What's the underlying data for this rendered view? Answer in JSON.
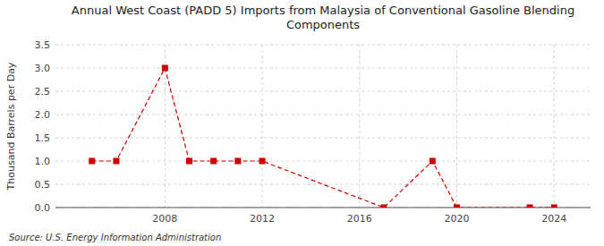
{
  "chart_data": {
    "type": "line",
    "title": "Annual West Coast (PADD 5) Imports from Malaysia of Conventional Gasoline Blending\nComponents",
    "ylabel": "Thousand Barrels per Day",
    "source": "Source: U.S. Energy Information Administration",
    "x": [
      2005,
      2006,
      2008,
      2009,
      2010,
      2011,
      2012,
      2017,
      2019,
      2020,
      2023,
      2024
    ],
    "series": [
      {
        "values": [
          1.0,
          1.0,
          3.0,
          1.0,
          1.0,
          1.0,
          1.0,
          0.0,
          1.0,
          0.0,
          0.0,
          0.0
        ],
        "color": "#cc0000",
        "marker": "square",
        "line_style": "dashed"
      }
    ],
    "xlim": [
      2003.5,
      2025.5
    ],
    "xticks": [
      2008,
      2012,
      2016,
      2020,
      2024
    ],
    "ylim": [
      0.0,
      3.5
    ],
    "yticks": [
      {
        "value": 0.0,
        "label": "0.0"
      },
      0.5,
      {
        "value": 1.0,
        "label": "1.0"
      },
      1.5,
      {
        "value": 2.0,
        "label": "2.0"
      },
      2.5,
      {
        "value": 3.0,
        "label": "3.0"
      },
      3.5
    ],
    "grid": true
  }
}
